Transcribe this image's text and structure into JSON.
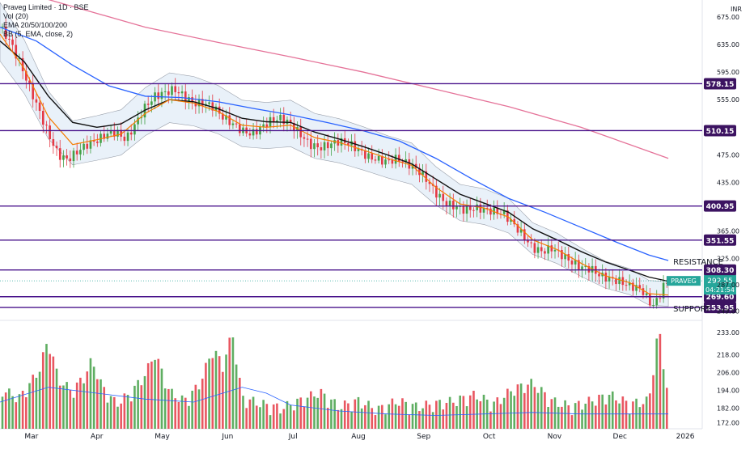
{
  "header": {
    "symbol_line": "Praveg Limited · 1D · BSE",
    "vol_line": "Vol (20)",
    "ema_line": "EMA 20/50/100/200",
    "bb_line": "BB (5, EMA, close, 2)"
  },
  "currency": "INR",
  "colors": {
    "up": "#43a047",
    "down": "#e53945",
    "ema20": "#f57c00",
    "ema50": "#111111",
    "ema100": "#2962ff",
    "ema200": "#e57399",
    "level_line": "#4a148c",
    "level_badge": "#3c1361",
    "price_badge": "#26a69a",
    "bb_fill": "#dbe8f5",
    "vol_ma": "#2962ff"
  },
  "chart_data": {
    "type": "candlestick",
    "x_labels": [
      "Mar",
      "Apr",
      "May",
      "Jun",
      "Jul",
      "Aug",
      "Sep",
      "Oct",
      "Nov",
      "Dec",
      "2026"
    ],
    "price_axis_ticks": [
      "675.00",
      "635.00",
      "595.00",
      "555.00",
      "475.00",
      "435.00",
      "365.00",
      "325.00",
      "287.00",
      "249.00"
    ],
    "volume_axis_ticks": [
      "233.00",
      "218.00",
      "206.00",
      "194.00",
      "182.00",
      "172.00"
    ],
    "levels": [
      {
        "value": 578.15,
        "label": "578.15"
      },
      {
        "value": 510.15,
        "label": "510.15"
      },
      {
        "value": 400.95,
        "label": "400.95"
      },
      {
        "value": 351.55,
        "label": "351.55"
      },
      {
        "value": 308.3,
        "label": "308.30"
      },
      {
        "value": 269.6,
        "label": "269.60"
      },
      {
        "value": 253.95,
        "label": "253.95"
      }
    ],
    "annotations": [
      {
        "text": "RESISTANCE",
        "price": 316
      },
      {
        "text": "SUPPORT",
        "price": 248
      }
    ],
    "last_price": {
      "ticker": "PRAVEG",
      "price": "292.55",
      "countdown": "04:21:54",
      "value": 292.55
    },
    "close_path": [
      [
        0,
        660
      ],
      [
        4,
        640
      ],
      [
        8,
        610
      ],
      [
        12,
        575
      ],
      [
        16,
        540
      ],
      [
        20,
        505
      ],
      [
        24,
        475
      ],
      [
        28,
        468
      ],
      [
        32,
        480
      ],
      [
        36,
        490
      ],
      [
        40,
        496
      ],
      [
        44,
        505
      ],
      [
        48,
        508
      ],
      [
        52,
        497
      ],
      [
        56,
        520
      ],
      [
        60,
        545
      ],
      [
        64,
        560
      ],
      [
        68,
        565
      ],
      [
        72,
        570
      ],
      [
        76,
        560
      ],
      [
        80,
        550
      ],
      [
        84,
        550
      ],
      [
        88,
        545
      ],
      [
        92,
        530
      ],
      [
        96,
        520
      ],
      [
        100,
        510
      ],
      [
        104,
        505
      ],
      [
        108,
        515
      ],
      [
        112,
        525
      ],
      [
        116,
        528
      ],
      [
        120,
        520
      ],
      [
        124,
        505
      ],
      [
        128,
        490
      ],
      [
        132,
        485
      ],
      [
        136,
        490
      ],
      [
        140,
        495
      ],
      [
        144,
        492
      ],
      [
        148,
        482
      ],
      [
        152,
        472
      ],
      [
        156,
        468
      ],
      [
        160,
        465
      ],
      [
        164,
        470
      ],
      [
        168,
        463
      ],
      [
        172,
        455
      ],
      [
        176,
        440
      ],
      [
        180,
        420
      ],
      [
        184,
        405
      ],
      [
        188,
        400
      ],
      [
        192,
        395
      ],
      [
        196,
        398
      ],
      [
        200,
        396
      ],
      [
        204,
        393
      ],
      [
        208,
        390
      ],
      [
        212,
        375
      ],
      [
        216,
        358
      ],
      [
        220,
        340
      ],
      [
        224,
        335
      ],
      [
        228,
        340
      ],
      [
        232,
        330
      ],
      [
        236,
        320
      ],
      [
        240,
        312
      ],
      [
        244,
        310
      ],
      [
        248,
        300
      ],
      [
        252,
        295
      ],
      [
        256,
        292
      ],
      [
        260,
        285
      ],
      [
        264,
        282
      ],
      [
        266,
        275
      ],
      [
        268,
        262
      ],
      [
        270,
        257
      ],
      [
        272,
        268
      ],
      [
        274,
        285
      ],
      [
        276,
        292
      ]
    ],
    "ema20": [
      [
        0,
        650
      ],
      [
        10,
        600
      ],
      [
        20,
        530
      ],
      [
        30,
        490
      ],
      [
        40,
        497
      ],
      [
        50,
        505
      ],
      [
        60,
        535
      ],
      [
        70,
        555
      ],
      [
        80,
        550
      ],
      [
        90,
        538
      ],
      [
        100,
        518
      ],
      [
        110,
        515
      ],
      [
        120,
        518
      ],
      [
        130,
        500
      ],
      [
        140,
        493
      ],
      [
        150,
        482
      ],
      [
        160,
        470
      ],
      [
        170,
        460
      ],
      [
        180,
        428
      ],
      [
        190,
        404
      ],
      [
        200,
        398
      ],
      [
        210,
        385
      ],
      [
        220,
        352
      ],
      [
        230,
        338
      ],
      [
        240,
        318
      ],
      [
        250,
        300
      ],
      [
        260,
        290
      ],
      [
        268,
        274
      ],
      [
        276,
        272
      ]
    ],
    "ema50": [
      [
        0,
        640
      ],
      [
        10,
        610
      ],
      [
        20,
        560
      ],
      [
        30,
        522
      ],
      [
        40,
        515
      ],
      [
        50,
        520
      ],
      [
        60,
        540
      ],
      [
        70,
        555
      ],
      [
        80,
        552
      ],
      [
        90,
        542
      ],
      [
        100,
        528
      ],
      [
        110,
        523
      ],
      [
        120,
        522
      ],
      [
        130,
        508
      ],
      [
        140,
        498
      ],
      [
        150,
        487
      ],
      [
        160,
        475
      ],
      [
        170,
        462
      ],
      [
        180,
        440
      ],
      [
        190,
        418
      ],
      [
        200,
        405
      ],
      [
        210,
        392
      ],
      [
        220,
        368
      ],
      [
        230,
        352
      ],
      [
        240,
        335
      ],
      [
        250,
        320
      ],
      [
        260,
        308
      ],
      [
        268,
        298
      ],
      [
        276,
        292
      ]
    ],
    "ema100": [
      [
        0,
        660
      ],
      [
        15,
        640
      ],
      [
        30,
        605
      ],
      [
        45,
        575
      ],
      [
        60,
        560
      ],
      [
        75,
        558
      ],
      [
        90,
        552
      ],
      [
        105,
        542
      ],
      [
        120,
        533
      ],
      [
        135,
        522
      ],
      [
        150,
        510
      ],
      [
        165,
        495
      ],
      [
        180,
        470
      ],
      [
        195,
        440
      ],
      [
        210,
        412
      ],
      [
        225,
        392
      ],
      [
        240,
        370
      ],
      [
        255,
        348
      ],
      [
        268,
        330
      ],
      [
        276,
        322
      ]
    ],
    "ema200": [
      [
        0,
        720
      ],
      [
        30,
        690
      ],
      [
        60,
        660
      ],
      [
        90,
        638
      ],
      [
        120,
        617
      ],
      [
        150,
        595
      ],
      [
        180,
        570
      ],
      [
        210,
        545
      ],
      [
        240,
        515
      ],
      [
        260,
        490
      ],
      [
        276,
        470
      ]
    ],
    "bollinger": {
      "upper_offset_pct": 0.07,
      "lower_offset_pct": 0.06
    },
    "volume_path": [
      [
        0,
        188
      ],
      [
        8,
        182
      ],
      [
        16,
        200
      ],
      [
        20,
        222
      ],
      [
        24,
        195
      ],
      [
        30,
        186
      ],
      [
        36,
        200
      ],
      [
        38,
        208
      ],
      [
        42,
        190
      ],
      [
        48,
        178
      ],
      [
        54,
        185
      ],
      [
        60,
        198
      ],
      [
        64,
        212
      ],
      [
        70,
        186
      ],
      [
        76,
        180
      ],
      [
        82,
        190
      ],
      [
        88,
        215
      ],
      [
        92,
        204
      ],
      [
        96,
        226
      ],
      [
        100,
        182
      ],
      [
        108,
        178
      ],
      [
        116,
        175
      ],
      [
        124,
        180
      ],
      [
        132,
        186
      ],
      [
        140,
        176
      ],
      [
        148,
        180
      ],
      [
        156,
        174
      ],
      [
        164,
        180
      ],
      [
        172,
        176
      ],
      [
        180,
        178
      ],
      [
        188,
        180
      ],
      [
        196,
        184
      ],
      [
        204,
        178
      ],
      [
        212,
        188
      ],
      [
        220,
        192
      ],
      [
        228,
        180
      ],
      [
        236,
        176
      ],
      [
        244,
        180
      ],
      [
        252,
        184
      ],
      [
        260,
        178
      ],
      [
        268,
        180
      ],
      [
        272,
        230
      ],
      [
        276,
        182
      ]
    ],
    "volume_ma_path": [
      [
        0,
        186
      ],
      [
        20,
        196
      ],
      [
        40,
        192
      ],
      [
        60,
        188
      ],
      [
        80,
        186
      ],
      [
        100,
        196
      ],
      [
        110,
        192
      ],
      [
        120,
        184
      ],
      [
        140,
        180
      ],
      [
        160,
        178
      ],
      [
        180,
        177
      ],
      [
        200,
        178
      ],
      [
        220,
        179
      ],
      [
        240,
        178
      ],
      [
        260,
        178
      ],
      [
        276,
        178
      ]
    ],
    "x_range": [
      0,
      290
    ],
    "price_range": [
      240,
      690
    ],
    "volume_range": [
      168,
      240
    ]
  },
  "annot_labels": {
    "resistance": "RESISTANCE",
    "support": "SUPPORT"
  }
}
